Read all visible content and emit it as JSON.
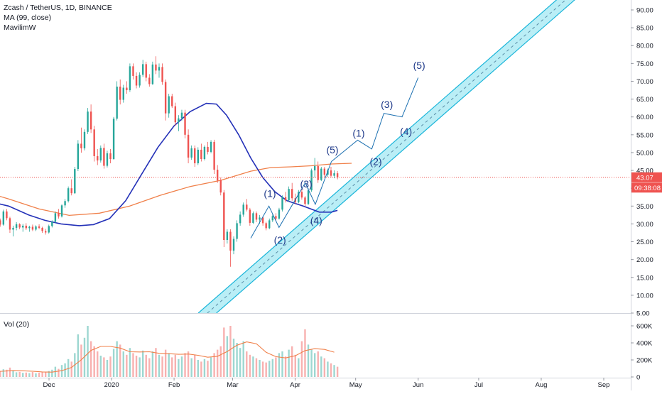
{
  "legend": {
    "symbol": "Zcash / TetherUS, 1D, BINANCE",
    "ma": "MA (99, close)",
    "indicator": "MavilimW"
  },
  "volume_title": "Vol (20)",
  "price_badge": "43.07",
  "countdown_badge": "09:38:08",
  "colors": {
    "up": "#26a69a",
    "down": "#ef5350",
    "ma_line": "#f0804a",
    "mavilim_line": "#2431b8",
    "channel_fill": "#b3ecf5",
    "channel_stroke": "#1ab5d9",
    "price_line": "#ef5350",
    "wave_text": "#1f3a8a"
  },
  "chart_data": {
    "type": "candlestick",
    "price_axis": {
      "ticks": [
        "90.00",
        "85.00",
        "80.00",
        "75.00",
        "70.00",
        "65.00",
        "60.00",
        "55.00",
        "50.00",
        "45.00",
        "40.00",
        "35.00",
        "30.00",
        "25.00",
        "20.00",
        "15.00",
        "10.00",
        "5.00"
      ],
      "range": [
        5,
        92
      ]
    },
    "volume_axis": {
      "ticks": [
        "600K",
        "400K",
        "200K",
        "0"
      ],
      "range": [
        0,
        680000
      ]
    },
    "time_axis": {
      "labels": [
        "Dec",
        "2020",
        "Feb",
        "Mar",
        "Apr",
        "May",
        "Jun",
        "Jul",
        "Aug",
        "Sep"
      ],
      "label_days": [
        30,
        61,
        92,
        121,
        152,
        182,
        213,
        243,
        274,
        305
      ]
    },
    "last_price": 43.07,
    "candles_ohlc": [
      [
        38.2,
        38.8,
        37.0,
        37.6
      ],
      [
        37.6,
        39.0,
        37.0,
        38.6
      ],
      [
        38.6,
        39.0,
        37.5,
        37.9
      ],
      [
        37.9,
        38.5,
        36.8,
        37.1
      ],
      [
        37.1,
        38.0,
        36.2,
        37.6
      ],
      [
        37.6,
        38.2,
        36.8,
        37.0
      ],
      [
        37.0,
        37.5,
        35.8,
        36.1
      ],
      [
        36.1,
        36.8,
        35.2,
        35.6
      ],
      [
        35.6,
        36.0,
        33.5,
        34.2
      ],
      [
        34.2,
        35.0,
        32.5,
        33.0
      ],
      [
        33.0,
        33.5,
        30.5,
        31.0
      ],
      [
        31.0,
        31.5,
        28.5,
        29.5
      ],
      [
        29.5,
        30.2,
        27.8,
        28.3
      ],
      [
        28.3,
        29.0,
        25.8,
        28.6
      ],
      [
        28.6,
        30.0,
        28.0,
        29.6
      ],
      [
        29.6,
        30.5,
        28.8,
        29.2
      ],
      [
        29.2,
        30.8,
        28.6,
        30.1
      ],
      [
        30.1,
        30.5,
        28.5,
        29.0
      ],
      [
        29.0,
        29.8,
        27.0,
        28.2
      ],
      [
        28.2,
        28.8,
        26.8,
        27.4
      ],
      [
        27.4,
        30.0,
        27.0,
        29.7
      ],
      [
        29.7,
        31.0,
        29.2,
        30.5
      ],
      [
        30.5,
        31.5,
        29.8,
        30.9
      ],
      [
        30.9,
        32.5,
        30.2,
        31.8
      ],
      [
        31.8,
        33.2,
        31.0,
        32.4
      ],
      [
        32.4,
        33.5,
        30.5,
        31.0
      ],
      [
        31.0,
        31.5,
        29.2,
        29.8
      ],
      [
        29.8,
        34.0,
        29.5,
        33.5
      ],
      [
        33.5,
        34.2,
        31.0,
        31.6
      ],
      [
        31.6,
        32.0,
        27.5,
        28.4
      ],
      [
        28.4,
        29.5,
        26.5,
        28.9
      ],
      [
        28.9,
        30.5,
        28.2,
        29.9
      ],
      [
        29.9,
        30.2,
        28.5,
        29.0
      ],
      [
        29.0,
        30.0,
        27.8,
        29.5
      ],
      [
        29.5,
        30.2,
        28.3,
        28.8
      ],
      [
        28.8,
        29.5,
        27.8,
        29.2
      ],
      [
        29.2,
        29.8,
        28.0,
        28.4
      ],
      [
        28.4,
        29.6,
        28.0,
        29.3
      ],
      [
        29.3,
        29.9,
        28.5,
        28.9
      ],
      [
        28.9,
        29.2,
        27.5,
        28.0
      ],
      [
        28.0,
        28.6,
        27.0,
        27.6
      ],
      [
        27.6,
        29.8,
        27.3,
        29.4
      ],
      [
        29.4,
        31.0,
        29.0,
        30.6
      ],
      [
        30.6,
        33.5,
        30.2,
        33.0
      ],
      [
        33.0,
        34.2,
        31.5,
        32.1
      ],
      [
        32.1,
        35.5,
        31.8,
        35.2
      ],
      [
        35.2,
        37.0,
        34.5,
        36.4
      ],
      [
        36.4,
        40.5,
        36.0,
        40.0
      ],
      [
        40.0,
        42.5,
        38.0,
        38.6
      ],
      [
        38.6,
        46.0,
        38.4,
        45.4
      ],
      [
        45.4,
        53.5,
        44.8,
        52.5
      ],
      [
        52.5,
        57.0,
        50.0,
        51.2
      ],
      [
        51.2,
        56.5,
        50.6,
        55.8
      ],
      [
        55.8,
        62.5,
        55.2,
        61.5
      ],
      [
        61.5,
        63.5,
        55.5,
        56.5
      ],
      [
        56.5,
        57.5,
        47.5,
        49.0
      ],
      [
        49.0,
        51.0,
        46.5,
        47.8
      ],
      [
        47.8,
        52.0,
        47.2,
        51.3
      ],
      [
        51.3,
        52.5,
        45.5,
        46.3
      ],
      [
        46.3,
        50.5,
        45.8,
        49.8
      ],
      [
        49.8,
        51.0,
        47.0,
        48.2
      ],
      [
        48.2,
        60.0,
        48.0,
        59.5
      ],
      [
        59.5,
        70.0,
        59.0,
        68.5
      ],
      [
        68.5,
        70.5,
        63.5,
        64.8
      ],
      [
        64.8,
        69.0,
        64.0,
        68.2
      ],
      [
        68.2,
        70.0,
        66.5,
        67.5
      ],
      [
        67.5,
        75.0,
        67.0,
        74.2
      ],
      [
        74.2,
        75.0,
        70.5,
        71.5
      ],
      [
        71.5,
        72.5,
        68.0,
        68.8
      ],
      [
        68.8,
        72.5,
        68.2,
        71.8
      ],
      [
        71.8,
        76.0,
        71.2,
        74.8
      ],
      [
        74.8,
        75.5,
        70.0,
        71.0
      ],
      [
        71.0,
        72.0,
        68.5,
        69.2
      ],
      [
        69.2,
        75.5,
        69.0,
        74.7
      ],
      [
        74.7,
        77.0,
        72.0,
        73.0
      ],
      [
        73.0,
        75.0,
        71.0,
        74.0
      ],
      [
        74.0,
        75.0,
        69.0,
        69.8
      ],
      [
        69.8,
        70.5,
        59.0,
        61.0
      ],
      [
        61.0,
        66.5,
        59.8,
        65.8
      ],
      [
        65.8,
        66.5,
        62.5,
        63.0
      ],
      [
        63.0,
        64.0,
        57.5,
        58.5
      ],
      [
        58.5,
        60.5,
        56.0,
        59.6
      ],
      [
        59.6,
        62.0,
        59.0,
        61.2
      ],
      [
        61.2,
        62.0,
        54.0,
        55.0
      ],
      [
        55.0,
        56.5,
        47.0,
        48.6
      ],
      [
        48.6,
        52.0,
        48.0,
        51.2
      ],
      [
        51.2,
        52.0,
        46.0,
        47.0
      ],
      [
        47.0,
        51.5,
        46.5,
        50.8
      ],
      [
        50.8,
        52.5,
        47.5,
        48.2
      ],
      [
        48.2,
        52.0,
        47.8,
        51.6
      ],
      [
        51.6,
        53.0,
        49.5,
        50.2
      ],
      [
        50.2,
        53.5,
        49.8,
        53.0
      ],
      [
        53.0,
        53.6,
        44.0,
        45.2
      ],
      [
        45.2,
        46.5,
        41.5,
        42.2
      ],
      [
        42.2,
        43.0,
        38.0,
        38.8
      ],
      [
        38.8,
        39.5,
        23.5,
        25.5
      ],
      [
        25.5,
        28.5,
        24.5,
        27.8
      ],
      [
        27.8,
        28.5,
        18.0,
        22.5
      ],
      [
        22.5,
        26.5,
        21.5,
        25.8
      ],
      [
        25.8,
        31.0,
        25.0,
        30.2
      ],
      [
        30.2,
        33.5,
        29.5,
        32.6
      ],
      [
        32.6,
        36.0,
        32.0,
        35.4
      ],
      [
        35.4,
        37.0,
        33.5,
        34.0
      ],
      [
        34.0,
        34.5,
        29.5,
        30.3
      ],
      [
        30.3,
        33.5,
        30.0,
        33.0
      ],
      [
        33.0,
        33.5,
        30.5,
        31.2
      ],
      [
        31.2,
        32.5,
        30.0,
        31.8
      ],
      [
        31.8,
        32.0,
        29.5,
        30.2
      ],
      [
        30.2,
        30.6,
        28.2,
        28.8
      ],
      [
        28.8,
        31.5,
        28.5,
        31.0
      ],
      [
        31.0,
        32.8,
        30.5,
        32.2
      ],
      [
        32.2,
        33.0,
        30.8,
        31.5
      ],
      [
        31.5,
        34.5,
        31.2,
        34.0
      ],
      [
        34.0,
        38.0,
        33.5,
        37.5
      ],
      [
        37.5,
        39.0,
        36.0,
        36.6
      ],
      [
        36.6,
        40.5,
        36.2,
        39.8
      ],
      [
        39.8,
        41.5,
        36.5,
        37.2
      ],
      [
        37.2,
        38.5,
        35.5,
        36.1
      ],
      [
        36.1,
        39.5,
        35.8,
        39.0
      ],
      [
        39.0,
        39.8,
        36.8,
        37.4
      ],
      [
        37.4,
        37.8,
        35.0,
        35.6
      ],
      [
        35.6,
        40.0,
        35.3,
        39.4
      ],
      [
        39.4,
        45.5,
        39.0,
        45.0
      ],
      [
        45.0,
        48.5,
        43.0,
        46.2
      ],
      [
        46.2,
        47.5,
        41.5,
        42.3
      ],
      [
        42.3,
        46.0,
        42.0,
        45.5
      ],
      [
        45.5,
        46.0,
        43.0,
        43.8
      ],
      [
        43.8,
        45.5,
        43.2,
        45.0
      ],
      [
        45.0,
        46.0,
        43.0,
        43.5
      ],
      [
        43.5,
        45.0,
        42.8,
        44.2
      ],
      [
        44.2,
        44.8,
        42.5,
        43.07
      ]
    ],
    "volume_k": [
      55,
      48,
      40,
      42,
      35,
      38,
      50,
      45,
      60,
      58,
      72,
      65,
      55,
      85,
      62,
      45,
      55,
      50,
      70,
      60,
      75,
      65,
      58,
      60,
      72,
      80,
      68,
      90,
      85,
      110,
      70,
      55,
      60,
      48,
      52,
      45,
      58,
      42,
      50,
      60,
      55,
      70,
      85,
      120,
      95,
      140,
      160,
      210,
      180,
      280,
      500,
      380,
      460,
      600,
      420,
      360,
      300,
      250,
      230,
      200,
      240,
      330,
      420,
      380,
      300,
      260,
      340,
      280,
      250,
      230,
      310,
      260,
      220,
      300,
      340,
      260,
      240,
      320,
      280,
      230,
      260,
      210,
      240,
      280,
      300,
      220,
      260,
      200,
      180,
      210,
      190,
      230,
      280,
      320,
      360,
      580,
      480,
      600,
      450,
      400,
      340,
      420,
      300,
      260,
      240,
      220,
      200,
      180,
      170,
      190,
      210,
      230,
      280,
      300,
      240,
      320,
      360,
      260,
      220,
      420,
      560,
      380,
      320,
      280,
      300,
      240,
      220,
      180,
      160,
      140,
      120
    ],
    "ma99": [
      [
        -36,
        44.5
      ],
      [
        -20,
        41.0
      ],
      [
        -5,
        39.5
      ],
      [
        10,
        37.0
      ],
      [
        25,
        34.2
      ],
      [
        40,
        32.4
      ],
      [
        55,
        33.0
      ],
      [
        70,
        35.0
      ],
      [
        85,
        38.0
      ],
      [
        100,
        40.5
      ],
      [
        115,
        42.2
      ],
      [
        130,
        44.8
      ],
      [
        140,
        45.8
      ],
      [
        150,
        46.0
      ],
      [
        160,
        46.3
      ],
      [
        170,
        46.8
      ],
      [
        180,
        47.0
      ]
    ],
    "mavilim": [
      [
        -36,
        36.2
      ],
      [
        -20,
        36.8
      ],
      [
        -5,
        37.0
      ],
      [
        10,
        35.0
      ],
      [
        20,
        32.5
      ],
      [
        28,
        31.0
      ],
      [
        36,
        30.0
      ],
      [
        45,
        29.5
      ],
      [
        52,
        29.8
      ],
      [
        60,
        31.5
      ],
      [
        68,
        36.5
      ],
      [
        76,
        44.0
      ],
      [
        84,
        51.5
      ],
      [
        92,
        57.5
      ],
      [
        100,
        61.5
      ],
      [
        108,
        63.8
      ],
      [
        113,
        63.6
      ],
      [
        118,
        60.5
      ],
      [
        124,
        55.0
      ],
      [
        130,
        48.5
      ],
      [
        136,
        43.0
      ],
      [
        142,
        39.0
      ],
      [
        148,
        36.5
      ],
      [
        156,
        35.0
      ],
      [
        164,
        33.3
      ],
      [
        170,
        33.3
      ],
      [
        173,
        33.8
      ]
    ],
    "channel": {
      "upper": [
        [
          104,
          5.0
        ],
        [
          286,
          95.0
        ]
      ],
      "lower": [
        [
          113,
          5.0
        ],
        [
          295,
          95.0
        ]
      ],
      "midline": [
        [
          108.5,
          5.0
        ],
        [
          290.5,
          95.0
        ]
      ]
    },
    "wave_labels": [
      {
        "text": "(1)",
        "day": 139.5,
        "price": 37.5
      },
      {
        "text": "(2)",
        "day": 144.5,
        "price": 24.5
      },
      {
        "text": "(3)",
        "day": 157.5,
        "price": 40.2
      },
      {
        "text": "(4)",
        "day": 162.5,
        "price": 30.0
      },
      {
        "text": "(5)",
        "day": 170.5,
        "price": 49.8
      },
      {
        "text": "(1)",
        "day": 183.5,
        "price": 54.5
      },
      {
        "text": "(2)",
        "day": 192.0,
        "price": 46.5
      },
      {
        "text": "(3)",
        "day": 197.5,
        "price": 62.5
      },
      {
        "text": "(4)",
        "day": 207.0,
        "price": 55.0
      },
      {
        "text": "(5)",
        "day": 213.5,
        "price": 73.5
      }
    ],
    "wave_path_actual": [
      [
        130,
        26.0
      ],
      [
        139,
        35.0
      ],
      [
        144,
        29.0
      ],
      [
        157,
        41.5
      ],
      [
        162,
        35.5
      ],
      [
        170,
        47.5
      ]
    ],
    "wave_path_projected": [
      [
        170,
        47.5
      ],
      [
        183,
        53.5
      ],
      [
        190,
        51.0
      ],
      [
        196,
        61.0
      ],
      [
        205,
        60.0
      ],
      [
        213,
        71.0
      ]
    ]
  }
}
